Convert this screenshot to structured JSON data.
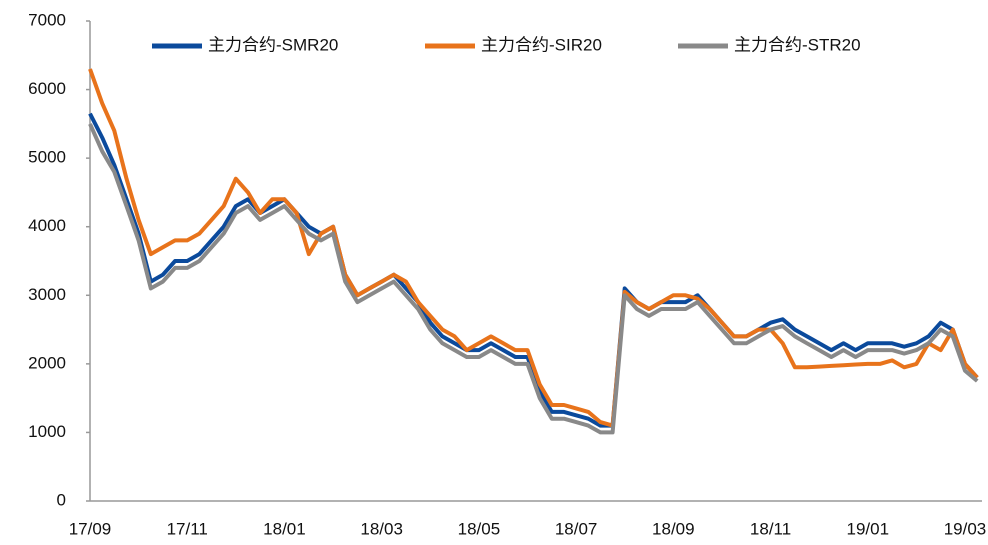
{
  "chart_data": {
    "type": "line",
    "categories": [
      "17/09",
      null,
      null,
      null,
      null,
      null,
      null,
      null,
      "17/11",
      null,
      null,
      null,
      null,
      null,
      null,
      null,
      "18/01",
      null,
      null,
      null,
      null,
      null,
      null,
      null,
      "18/03",
      null,
      null,
      null,
      null,
      null,
      null,
      null,
      "18/05",
      null,
      null,
      null,
      null,
      null,
      null,
      null,
      "18/07",
      null,
      null,
      null,
      null,
      null,
      null,
      null,
      "18/09",
      null,
      null,
      null,
      null,
      null,
      null,
      null,
      "18/11",
      null,
      null,
      null,
      null,
      null,
      null,
      null,
      "19/01",
      null,
      null,
      null,
      null,
      null,
      null,
      null,
      "19/03",
      null
    ],
    "series": [
      {
        "name": "主力合约-SMR20",
        "color": "#0b4a9c",
        "values": [
          5650,
          5300,
          4900,
          4400,
          3900,
          3200,
          3300,
          3500,
          3500,
          3600,
          3800,
          4000,
          4300,
          4400,
          4200,
          4300,
          4400,
          4200,
          4000,
          3900,
          4000,
          3300,
          3000,
          3100,
          3200,
          3300,
          3100,
          2900,
          2600,
          2400,
          2300,
          2200,
          2200,
          2300,
          2200,
          2100,
          2100,
          1600,
          1300,
          1300,
          1250,
          1200,
          1100,
          1100,
          3100,
          2900,
          2800,
          2900,
          2900,
          2900,
          3000,
          2800,
          2600,
          2400,
          2400,
          2500,
          2600,
          2650,
          2500,
          2400,
          2300,
          2200,
          2300,
          2200,
          2300,
          2300,
          2300,
          2250,
          2300,
          2400,
          2600,
          2500,
          2000,
          1800
        ]
      },
      {
        "name": "主力合约-SIR20",
        "color": "#e8731b",
        "values": [
          6300,
          5800,
          5400,
          4700,
          4100,
          3600,
          3700,
          3800,
          3800,
          3900,
          4100,
          4300,
          4700,
          4500,
          4200,
          4400,
          4400,
          4200,
          3600,
          3900,
          4000,
          3300,
          3000,
          3100,
          3200,
          3300,
          3200,
          2900,
          2700,
          2500,
          2400,
          2200,
          2300,
          2400,
          2300,
          2200,
          2200,
          1700,
          1400,
          1400,
          1350,
          1300,
          1150,
          1100,
          3050,
          2900,
          2800,
          2900,
          3000,
          3000,
          2950,
          2800,
          2600,
          2400,
          2400,
          2500,
          2500,
          2300,
          1950,
          1950,
          1960,
          1970,
          1980,
          1990,
          2000,
          2000,
          2050,
          1950,
          2000,
          2300,
          2200,
          2500,
          2000,
          1800
        ]
      },
      {
        "name": "主力合约-STR20",
        "color": "#898989",
        "values": [
          5500,
          5100,
          4800,
          4300,
          3800,
          3100,
          3200,
          3400,
          3400,
          3500,
          3700,
          3900,
          4200,
          4300,
          4100,
          4200,
          4300,
          4100,
          3900,
          3800,
          3900,
          3200,
          2900,
          3000,
          3100,
          3200,
          3000,
          2800,
          2500,
          2300,
          2200,
          2100,
          2100,
          2200,
          2100,
          2000,
          2000,
          1500,
          1200,
          1200,
          1150,
          1100,
          1000,
          1000,
          3000,
          2800,
          2700,
          2800,
          2800,
          2800,
          2900,
          2700,
          2500,
          2300,
          2300,
          2400,
          2500,
          2550,
          2400,
          2300,
          2200,
          2100,
          2200,
          2100,
          2200,
          2200,
          2200,
          2150,
          2200,
          2300,
          2500,
          2400,
          1900,
          1750
        ]
      }
    ],
    "ylim": [
      0,
      7000
    ],
    "yticks": [
      0,
      1000,
      2000,
      3000,
      4000,
      5000,
      6000,
      7000
    ],
    "legend": "top"
  }
}
